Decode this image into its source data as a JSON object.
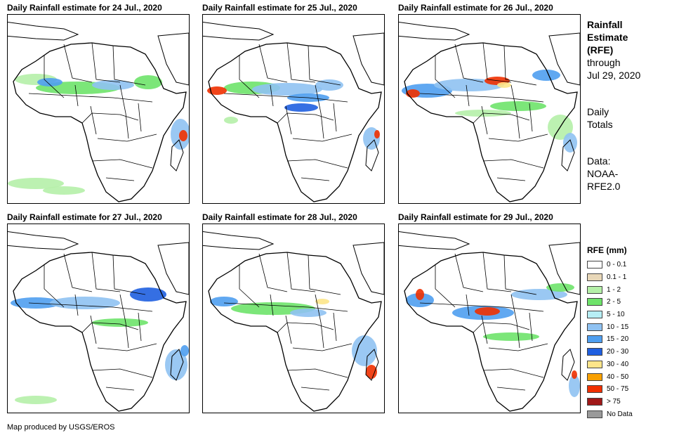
{
  "panels": [
    {
      "title": "Daily Rainfall estimate for 24 Jul., 2020",
      "date": "24 Jul., 2020"
    },
    {
      "title": "Daily Rainfall estimate for 25 Jul., 2020",
      "date": "25 Jul., 2020"
    },
    {
      "title": "Daily Rainfall estimate for 26 Jul., 2020",
      "date": "26 Jul., 2020"
    },
    {
      "title": "Daily Rainfall estimate for 27 Jul., 2020",
      "date": "27 Jul., 2020"
    },
    {
      "title": "Daily Rainfall estimate for 28 Jul., 2020",
      "date": "28 Jul., 2020"
    },
    {
      "title": "Daily Rainfall estimate for 29 Jul., 2020",
      "date": "29 Jul., 2020"
    }
  ],
  "side_info": {
    "title_line1": "Rainfall",
    "title_line2": "Estimate",
    "title_line3": "(RFE)",
    "through_line1": "through",
    "through_line2": "Jul 29, 2020",
    "totals_line1": "Daily",
    "totals_line2": "Totals",
    "data_line1": "Data:",
    "data_line2": "NOAA-",
    "data_line3": "RFE2.0"
  },
  "legend": {
    "title": "RFE (mm)",
    "items": [
      {
        "label": "0 - 0.1",
        "color": "#ffffff"
      },
      {
        "label": "0.1 - 1",
        "color": "#e8d7b8"
      },
      {
        "label": "1 - 2",
        "color": "#b5f0a8"
      },
      {
        "label": "2 - 5",
        "color": "#6ee36a"
      },
      {
        "label": "5 - 10",
        "color": "#b7eef5"
      },
      {
        "label": "10 - 15",
        "color": "#8fc2f2"
      },
      {
        "label": "15 - 20",
        "color": "#4f9ff0"
      },
      {
        "label": "20 - 30",
        "color": "#1f5fe0"
      },
      {
        "label": "30 - 40",
        "color": "#fde58a"
      },
      {
        "label": "40 - 50",
        "color": "#f8a000"
      },
      {
        "label": "50 - 75",
        "color": "#f03000"
      },
      {
        "label": "> 75",
        "color": "#a01818"
      },
      {
        "label": "No Data",
        "color": "#9a9a9a"
      }
    ]
  },
  "credit": "Map produced by USGS/EROS"
}
